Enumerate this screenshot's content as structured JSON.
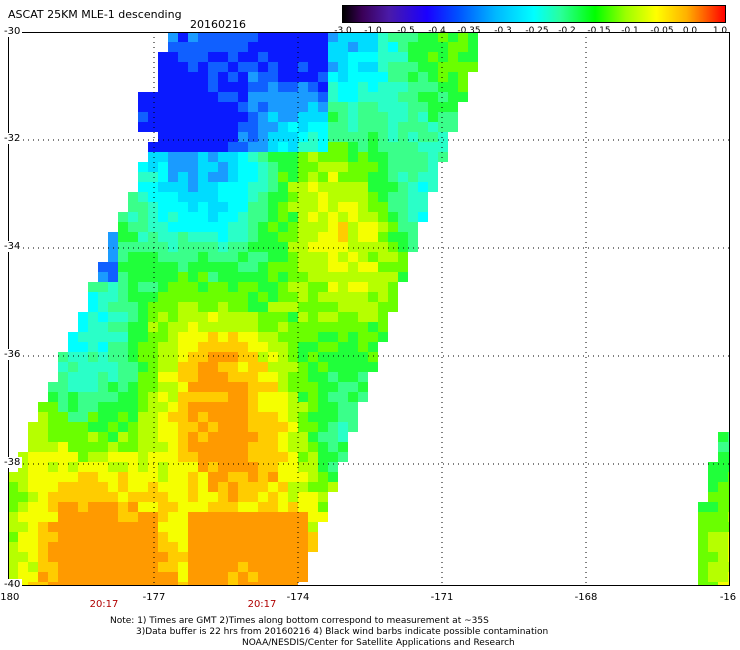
{
  "header": {
    "title": "ASCAT 25KM MLE-1 descending",
    "date": "20160216"
  },
  "colorbar": {
    "ticks": [
      "-3.0",
      "-1.0",
      "-0.5",
      "-0.4",
      "-0.35",
      "-0.3",
      "-0.25",
      "-0.2",
      "-0.15",
      "-0.1",
      "-0.05",
      "0.0",
      "1.0"
    ]
  },
  "map": {
    "lat_labels": [
      "-30",
      "-32",
      "-34",
      "-36",
      "-38",
      "-40"
    ],
    "lon_labels": [
      "-180",
      "-177",
      "-174",
      "-171",
      "-168",
      "-16"
    ],
    "time_labels": [
      "20:17",
      "20:17"
    ]
  },
  "notes": {
    "line1": "Note: 1) Times are GMT 2)Times along bottom correspond to measurement at ~35S",
    "line2": "3)Data buffer is 22 hrs from 20160216 4) Black wind barbs indicate possible contamination",
    "line3": "NOAA/NESDIS/Center for Satellite Applications and Research"
  },
  "colors": {
    "background": "#ffffff",
    "grid": "#000000",
    "time_label": "#b00000"
  }
}
